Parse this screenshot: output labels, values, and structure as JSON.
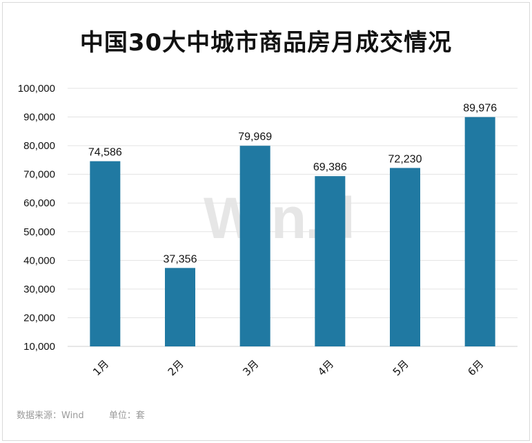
{
  "chart_data": {
    "type": "bar",
    "title": "中国30大中城市商品房月成交情况",
    "categories": [
      "1月",
      "2月",
      "3月",
      "4月",
      "5月",
      "6月"
    ],
    "values": [
      74586,
      37356,
      79969,
      69386,
      72230,
      89976
    ],
    "value_labels": [
      "74,586",
      "37,356",
      "79,969",
      "69,386",
      "72,230",
      "89,976"
    ],
    "y_ticks": [
      "10,000",
      "20,000",
      "30,000",
      "40,000",
      "50,000",
      "60,000",
      "70,000",
      "80,000",
      "90,000",
      "100,000"
    ],
    "ylim": [
      10000,
      100000
    ],
    "grid": true,
    "legend": "none",
    "bar_color": "#2079a2"
  },
  "watermark": "Win.d",
  "footer": {
    "source": "数据来源：Wind",
    "unit": "单位：套"
  },
  "colors": {
    "bar": "#2079a2",
    "grid": "#e3e3e3",
    "axis": "#cfcfcf"
  }
}
